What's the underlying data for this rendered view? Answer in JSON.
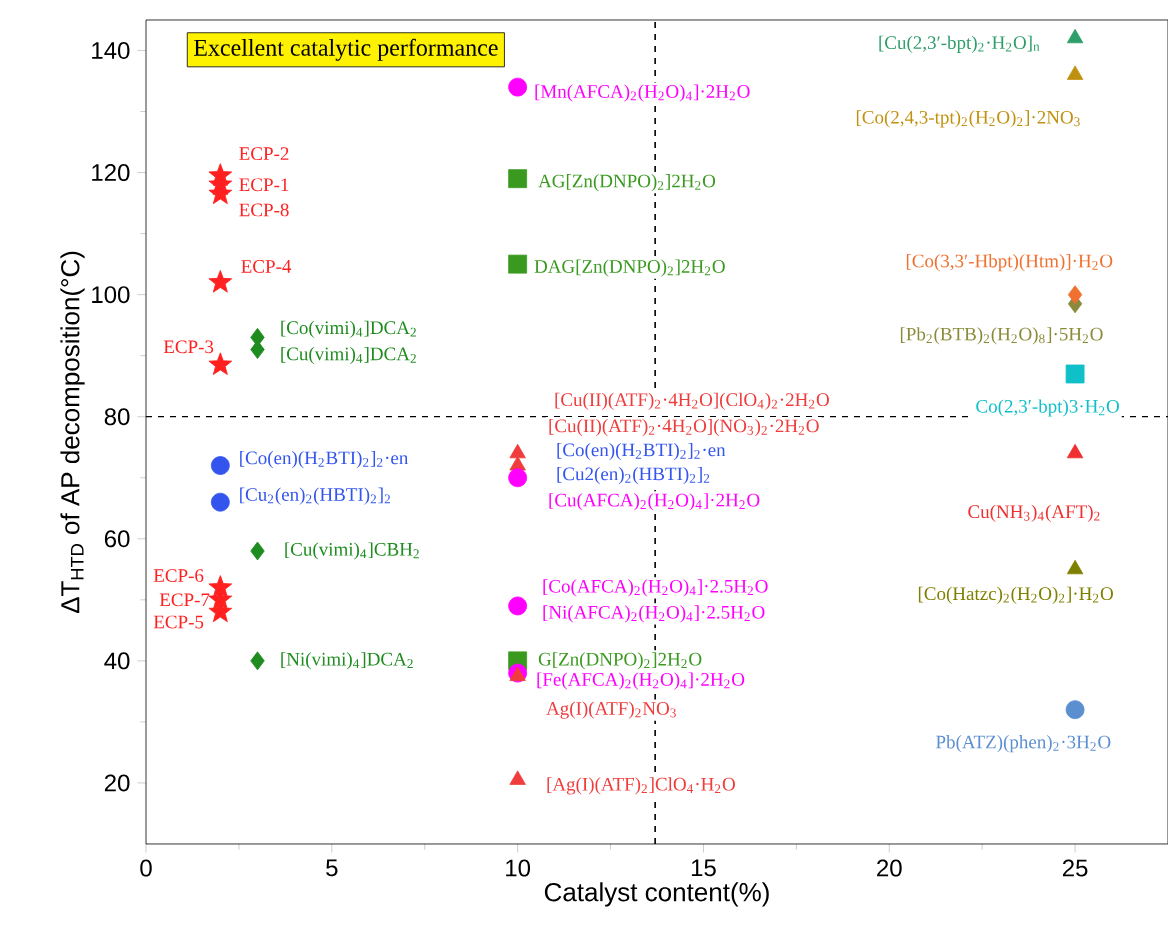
{
  "chart_data": {
    "type": "scatter",
    "xlabel": "Catalyst content(%)",
    "ylabel": "ΔT$_{HTD}$ of AP decomposition(°C)",
    "xlim": [
      0,
      27.5
    ],
    "ylim": [
      10,
      145
    ],
    "xticks": [
      0,
      5,
      10,
      15,
      20,
      25
    ],
    "yticks": [
      20,
      40,
      60,
      80,
      100,
      120,
      140
    ],
    "grid": false,
    "ref_lines": [
      {
        "axis": "y",
        "value": 80,
        "line_style": "dashed",
        "color": "#000000"
      },
      {
        "axis": "x",
        "value": 13.7,
        "line_style": "dashed",
        "color": "#000000"
      }
    ],
    "annotations": [
      "Excellent catalytic performance"
    ],
    "series": [
      {
        "name": "ECP-2",
        "color": "#ff2020",
        "marker": "star",
        "x": [
          2
        ],
        "values": [
          119.5
        ]
      },
      {
        "name": "ECP-1",
        "color": "#ff2020",
        "marker": "star",
        "x": [
          2
        ],
        "values": [
          118
        ]
      },
      {
        "name": "ECP-8",
        "color": "#ff2020",
        "marker": "star",
        "x": [
          2
        ],
        "values": [
          116.5
        ]
      },
      {
        "name": "ECP-4",
        "color": "#ff2020",
        "marker": "star",
        "x": [
          2
        ],
        "values": [
          102
        ]
      },
      {
        "name": "ECP-3",
        "color": "#ff2020",
        "marker": "star",
        "x": [
          2
        ],
        "values": [
          88.5
        ]
      },
      {
        "name": "ECP-6",
        "color": "#ff2020",
        "marker": "star",
        "x": [
          2
        ],
        "values": [
          52
        ]
      },
      {
        "name": "ECP-7",
        "color": "#ff2020",
        "marker": "star",
        "x": [
          2
        ],
        "values": [
          50
        ]
      },
      {
        "name": "ECP-5",
        "color": "#ff2020",
        "marker": "star",
        "x": [
          2
        ],
        "values": [
          48
        ]
      },
      {
        "name": "[Co(vimi)$_{4}$]DCA$_{2}$",
        "color": "#1e8c1e",
        "marker": "diamond",
        "x": [
          3
        ],
        "values": [
          93
        ]
      },
      {
        "name": "[Cu(vimi)$_{4}$]DCA$_{2}$",
        "color": "#1e8c1e",
        "marker": "diamond",
        "x": [
          3
        ],
        "values": [
          91
        ]
      },
      {
        "name": "[Cu(vimi)$_{4}$]CBH$_{2}$",
        "color": "#1e8c1e",
        "marker": "diamond",
        "x": [
          3
        ],
        "values": [
          58
        ]
      },
      {
        "name": "[Ni(vimi)$_{4}$]DCA$_{2}$",
        "color": "#1e8c1e",
        "marker": "diamond",
        "x": [
          3
        ],
        "values": [
          40
        ]
      },
      {
        "name": "[Co(en)(H$_{2}$BTI)$_{2}$]$_{2}$·en",
        "color": "#3355ee",
        "marker": "circle",
        "x": [
          2
        ],
        "values": [
          72
        ]
      },
      {
        "name": "[Cu$_{2}$(en)$_{2}$(HBTI)$_{2}$]$_{2}$",
        "color": "#3355ee",
        "marker": "circle",
        "x": [
          2
        ],
        "values": [
          66
        ]
      },
      {
        "name": "[Mn(AFCA)$_{2}$(H$_{2}$O)$_{4}$]·2H$_{2}$O",
        "color": "#ff00ff",
        "marker": "circle",
        "x": [
          10
        ],
        "values": [
          134
        ]
      },
      {
        "name": "AG[Zn(DNPO)$_{2}$]2H$_{2}$O",
        "color": "#3a9a20",
        "marker": "square",
        "x": [
          10
        ],
        "values": [
          119
        ]
      },
      {
        "name": "DAG[Zn(DNPO)$_{2}$]2H$_{2}$O",
        "color": "#3a9a20",
        "marker": "square",
        "x": [
          10
        ],
        "values": [
          105
        ]
      },
      {
        "name": "[Cu(II)(ATF)$_{2}$·4H$_{2}$O](ClO$_{4}$)$_{2}$·2H$_{2}$O",
        "color": "#f03c3c",
        "marker": "triangle",
        "x": [
          10
        ],
        "values": [
          74
        ]
      },
      {
        "name": "[Cu(II)(ATF)$_{2}$·4H$_{2}$O](NO$_{3}$)$_{2}$·2H$_{2}$O",
        "color": "#f03c3c",
        "marker": "triangle",
        "x": [
          10
        ],
        "values": [
          72
        ]
      },
      {
        "name": "[Co(en)(H$_{2}$BTI)$_{2}$]$_{2}$·en",
        "color": "#3355ee",
        "marker": "circle",
        "x": [
          null
        ],
        "values": [
          null
        ]
      },
      {
        "name": "[Cu2(en)$_{2}$(HBTI)$_{2}$]$_{2}$",
        "color": "#3355ee",
        "marker": "circle",
        "x": [
          null
        ],
        "values": [
          null
        ]
      },
      {
        "name": "[Cu(AFCA)$_{2}$(H$_{2}$O)$_{4}$]·2H$_{2}$O",
        "color": "#ff00ff",
        "marker": "circle",
        "x": [
          10
        ],
        "values": [
          70
        ]
      },
      {
        "name": "[Ni(AFCA)$_{2}$(H$_{2}$O)$_{4}$]·2.5H$_{2}$O",
        "color": "#ff00ff",
        "marker": "circle",
        "x": [
          10
        ],
        "values": [
          49
        ]
      },
      {
        "name": "[Co(AFCA)$_{2}$(H$_{2}$O)$_{4}$]·2.5H$_{2}$O",
        "color": "#ff00ff",
        "marker": "circle",
        "x": [
          null
        ],
        "values": [
          null
        ]
      },
      {
        "name": "G[Zn(DNPO)$_{2}$]2H$_{2}$O",
        "color": "#3a9a20",
        "marker": "square",
        "x": [
          10
        ],
        "values": [
          40
        ]
      },
      {
        "name": "[Fe(AFCA)$_{2}$(H$_{2}$O)$_{4}$]·2H$_{2}$O",
        "color": "#ff00ff",
        "marker": "circle",
        "x": [
          10
        ],
        "values": [
          38
        ]
      },
      {
        "name": "Ag(I)(ATF)$_{2}$NO$_{3}$",
        "color": "#f03c3c",
        "marker": "triangle",
        "x": [
          10
        ],
        "values": [
          37.5
        ]
      },
      {
        "name": "[Ag(I)(ATF)$_{2}$]ClO$_{4}$·H$_{2}$O",
        "color": "#f03c3c",
        "marker": "triangle",
        "x": [
          10
        ],
        "values": [
          20.5
        ]
      },
      {
        "name": "[Cu(2,3′-bpt)$_{2}$·H$_{2}$O]$_{n}$",
        "color": "#2e9e6a",
        "marker": "triangle",
        "x": [
          25
        ],
        "values": [
          142
        ]
      },
      {
        "name": "[Co(2,4,3-tpt)$_{2}$(H$_{2}$O)$_{2}$]·2NO$_{3}$",
        "color": "#c09010",
        "marker": "triangle",
        "x": [
          25
        ],
        "values": [
          136
        ]
      },
      {
        "name": "[Pb$_{2}$(BTB)$_{2}$(H$_{2}$O)$_{8}$]·5H$_{2}$O",
        "color": "#8a8a3a",
        "marker": "diamond",
        "x": [
          25
        ],
        "values": [
          98.5
        ]
      },
      {
        "name": "[Co(3,3′-Hbpt)(Htm)]·H$_{2}$O",
        "color": "#f07030",
        "marker": "diamond",
        "x": [
          25
        ],
        "values": [
          100
        ]
      },
      {
        "name": "Co(2,3′-bpt)3·H$_{2}$O",
        "color": "#10c0c8",
        "marker": "square",
        "x": [
          25
        ],
        "values": [
          87
        ]
      },
      {
        "name": "Cu(NH$_{3}$)$_{4}$(AFT)$_{2}$",
        "color": "#f03030",
        "marker": "triangle",
        "x": [
          25
        ],
        "values": [
          74
        ]
      },
      {
        "name": "[Co(Hatzc)$_{2}$(H$_{2}$O)$_{2}$]·H$_{2}$O",
        "color": "#808000",
        "marker": "triangle",
        "x": [
          25
        ],
        "values": [
          55
        ]
      },
      {
        "name": "Pb(ATZ)(phen)$_{2}$·3H$_{2}$O",
        "color": "#5b8fd0",
        "marker": "circle",
        "x": [
          25
        ],
        "values": [
          32
        ]
      }
    ]
  }
}
